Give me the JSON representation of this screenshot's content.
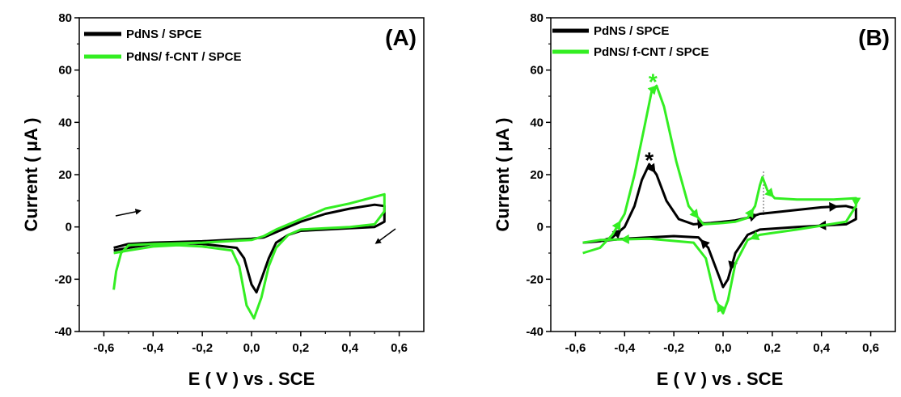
{
  "colors": {
    "black_series": "#000000",
    "green_series": "#33ee22"
  },
  "chart_data": [
    {
      "type": "line",
      "panel_label": "(A)",
      "xlabel": "E ( V ) vs . SCE",
      "ylabel": "Current ( μA )",
      "xlim": [
        -0.7,
        0.7
      ],
      "ylim": [
        -40,
        80
      ],
      "xticks": [
        -0.6,
        -0.4,
        -0.2,
        0.0,
        0.2,
        0.4,
        0.6
      ],
      "xtick_labels": [
        "-0,6",
        "-0,4",
        "-0,2",
        "0,0",
        "0,2",
        "0,4",
        "0,6"
      ],
      "yticks": [
        -40,
        -20,
        0,
        20,
        40,
        60,
        80
      ],
      "ytick_labels": [
        "-40",
        "-20",
        "0",
        "20",
        "40",
        "60",
        "80"
      ],
      "legend": {
        "position": "top-left"
      },
      "series": [
        {
          "name": "PdNS / SPCE",
          "color": "#000000",
          "points": [
            [
              -0.56,
              -8
            ],
            [
              -0.5,
              -6.5
            ],
            [
              -0.4,
              -6
            ],
            [
              -0.2,
              -5.5
            ],
            [
              -0.1,
              -5
            ],
            [
              0.0,
              -4.5
            ],
            [
              0.05,
              -4
            ],
            [
              0.1,
              -2
            ],
            [
              0.2,
              2
            ],
            [
              0.3,
              5
            ],
            [
              0.4,
              7
            ],
            [
              0.5,
              8.5
            ],
            [
              0.54,
              8
            ],
            [
              0.54,
              2
            ],
            [
              0.5,
              0
            ],
            [
              0.4,
              -0.5
            ],
            [
              0.3,
              -1
            ],
            [
              0.2,
              -1.5
            ],
            [
              0.15,
              -3
            ],
            [
              0.1,
              -6
            ],
            [
              0.07,
              -12
            ],
            [
              0.04,
              -20
            ],
            [
              0.02,
              -25
            ],
            [
              0.0,
              -22
            ],
            [
              -0.03,
              -12
            ],
            [
              -0.06,
              -8
            ],
            [
              -0.2,
              -6.5
            ],
            [
              -0.3,
              -6
            ],
            [
              -0.4,
              -6.5
            ],
            [
              -0.5,
              -8
            ],
            [
              -0.56,
              -9
            ]
          ]
        },
        {
          "name": "PdNS/ f-CNT / SPCE",
          "color": "#33ee22",
          "points": [
            [
              -0.56,
              -24
            ],
            [
              -0.55,
              -17
            ],
            [
              -0.53,
              -10
            ],
            [
              -0.5,
              -7
            ],
            [
              -0.4,
              -6.5
            ],
            [
              -0.2,
              -6
            ],
            [
              0.0,
              -5
            ],
            [
              0.05,
              -3.5
            ],
            [
              0.1,
              -1
            ],
            [
              0.2,
              3
            ],
            [
              0.3,
              7
            ],
            [
              0.4,
              9
            ],
            [
              0.5,
              11.5
            ],
            [
              0.54,
              12.5
            ],
            [
              0.54,
              6
            ],
            [
              0.5,
              1
            ],
            [
              0.4,
              0
            ],
            [
              0.3,
              -0.5
            ],
            [
              0.2,
              -1
            ],
            [
              0.15,
              -3
            ],
            [
              0.1,
              -8
            ],
            [
              0.07,
              -15
            ],
            [
              0.04,
              -27
            ],
            [
              0.01,
              -35
            ],
            [
              -0.02,
              -30
            ],
            [
              -0.05,
              -15
            ],
            [
              -0.08,
              -9
            ],
            [
              -0.2,
              -7.5
            ],
            [
              -0.3,
              -7
            ],
            [
              -0.4,
              -7.5
            ],
            [
              -0.5,
              -9
            ],
            [
              -0.56,
              -10
            ]
          ]
        }
      ]
    },
    {
      "type": "line",
      "panel_label": "(B)",
      "xlabel": "E ( V ) vs . SCE",
      "ylabel": "Current ( μA )",
      "xlim": [
        -0.7,
        0.7
      ],
      "ylim": [
        -40,
        80
      ],
      "xticks": [
        -0.6,
        -0.4,
        -0.2,
        0.0,
        0.2,
        0.4,
        0.6
      ],
      "xtick_labels": [
        "-0,6",
        "-0,4",
        "-0,2",
        "0,0",
        "0,2",
        "0,4",
        "0,6"
      ],
      "yticks": [
        -40,
        -20,
        0,
        20,
        40,
        60,
        80
      ],
      "ytick_labels": [
        "-40",
        "-20",
        "0",
        "20",
        "40",
        "60",
        "80"
      ],
      "legend": {
        "position": "top-left"
      },
      "annotations": [
        {
          "text": "*",
          "x": -0.285,
          "y": 57,
          "color": "#33ee22"
        },
        {
          "text": "*",
          "x": -0.3,
          "y": 27,
          "color": "#000000"
        }
      ],
      "series": [
        {
          "name": "PdNS / SPCE",
          "color": "#000000",
          "points": [
            [
              -0.57,
              -6
            ],
            [
              -0.5,
              -5.5
            ],
            [
              -0.45,
              -4
            ],
            [
              -0.4,
              0
            ],
            [
              -0.36,
              8
            ],
            [
              -0.33,
              18
            ],
            [
              -0.3,
              24
            ],
            [
              -0.27,
              20
            ],
            [
              -0.23,
              10
            ],
            [
              -0.18,
              3
            ],
            [
              -0.12,
              1
            ],
            [
              -0.05,
              1.5
            ],
            [
              0.0,
              2
            ],
            [
              0.05,
              2.5
            ],
            [
              0.1,
              3.5
            ],
            [
              0.15,
              5
            ],
            [
              0.2,
              5.5
            ],
            [
              0.3,
              6.5
            ],
            [
              0.4,
              7.5
            ],
            [
              0.5,
              8
            ],
            [
              0.54,
              7
            ],
            [
              0.54,
              3
            ],
            [
              0.5,
              1
            ],
            [
              0.3,
              0
            ],
            [
              0.15,
              -1
            ],
            [
              0.1,
              -3
            ],
            [
              0.05,
              -10
            ],
            [
              0.02,
              -20
            ],
            [
              0.0,
              -23
            ],
            [
              -0.02,
              -18
            ],
            [
              -0.06,
              -8
            ],
            [
              -0.1,
              -4
            ],
            [
              -0.2,
              -3.5
            ],
            [
              -0.4,
              -4.5
            ],
            [
              -0.57,
              -6
            ]
          ]
        },
        {
          "name": "PdNS/ f-CNT / SPCE",
          "color": "#33ee22",
          "points": [
            [
              -0.57,
              -10
            ],
            [
              -0.5,
              -8
            ],
            [
              -0.45,
              -3
            ],
            [
              -0.4,
              5
            ],
            [
              -0.36,
              20
            ],
            [
              -0.32,
              38
            ],
            [
              -0.29,
              52
            ],
            [
              -0.27,
              54
            ],
            [
              -0.24,
              46
            ],
            [
              -0.19,
              25
            ],
            [
              -0.14,
              8
            ],
            [
              -0.08,
              1
            ],
            [
              0.0,
              1.5
            ],
            [
              0.05,
              2
            ],
            [
              0.1,
              3.5
            ],
            [
              0.13,
              8
            ],
            [
              0.15,
              16
            ],
            [
              0.16,
              19
            ],
            [
              0.18,
              14
            ],
            [
              0.21,
              11
            ],
            [
              0.3,
              10.5
            ],
            [
              0.45,
              10.5
            ],
            [
              0.54,
              11
            ],
            [
              0.54,
              8
            ],
            [
              0.5,
              2
            ],
            [
              0.3,
              -1
            ],
            [
              0.15,
              -3
            ],
            [
              0.1,
              -5
            ],
            [
              0.05,
              -14
            ],
            [
              0.02,
              -28
            ],
            [
              0.0,
              -33
            ],
            [
              -0.03,
              -28
            ],
            [
              -0.07,
              -12
            ],
            [
              -0.12,
              -6
            ],
            [
              -0.3,
              -4.5
            ],
            [
              -0.5,
              -5
            ],
            [
              -0.57,
              -6
            ]
          ]
        }
      ]
    }
  ]
}
